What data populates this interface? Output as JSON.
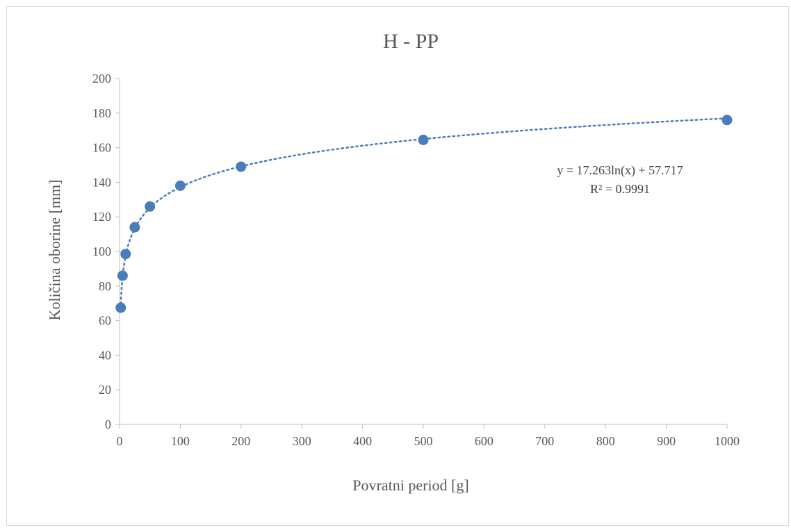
{
  "chart_data": {
    "type": "scatter",
    "title": "H - PP",
    "xlabel": "Povratni period [g]",
    "ylabel": "Količina oborine [mm]",
    "xlim": [
      0,
      1000
    ],
    "ylim": [
      0,
      200
    ],
    "xticks": [
      0,
      100,
      200,
      300,
      400,
      500,
      600,
      700,
      800,
      900,
      1000
    ],
    "yticks": [
      0,
      20,
      40,
      60,
      80,
      100,
      120,
      140,
      160,
      180,
      200
    ],
    "grid": false,
    "legend": "none",
    "series": [
      {
        "points": [
          {
            "x": 2,
            "y": 67.5
          },
          {
            "x": 5,
            "y": 86
          },
          {
            "x": 10,
            "y": 98.5
          },
          {
            "x": 25,
            "y": 114
          },
          {
            "x": 50,
            "y": 126
          },
          {
            "x": 100,
            "y": 138
          },
          {
            "x": 200,
            "y": 149
          },
          {
            "x": 500,
            "y": 164.5
          },
          {
            "x": 1000,
            "y": 176
          }
        ]
      }
    ],
    "trendline": {
      "type": "logarithmic",
      "a": 17.263,
      "b": 57.717,
      "equation_text": "y = 17.263ln(x)  + 57.717",
      "r2_text": "R² = 0.9991"
    },
    "colors": {
      "marker": "#4a7ebb",
      "trendline": "#4a7ebb",
      "axis": "#bfbfbf"
    }
  }
}
